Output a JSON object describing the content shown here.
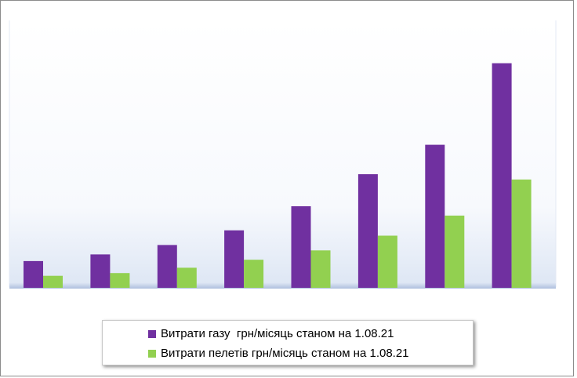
{
  "chart_data": {
    "type": "bar",
    "title": "",
    "xlabel": "",
    "ylabel": "",
    "categories": [
      "",
      "",
      "",
      "",
      "",
      "",
      "",
      ""
    ],
    "ylim": [
      0,
      100
    ],
    "grid": false,
    "legend_position": "bottom",
    "series": [
      {
        "name": "Витрати газу  грн/місяць станом на 1.08.21",
        "color": "#7030a0",
        "values": [
          10.0,
          12.5,
          16.0,
          21.5,
          30.5,
          42.5,
          53.5,
          84.0
        ]
      },
      {
        "name": "Витрати пелетів грн/місяць станом на 1.08.21",
        "color": "#92d050",
        "values": [
          4.5,
          5.5,
          7.5,
          10.5,
          14.0,
          19.5,
          27.0,
          40.5
        ]
      }
    ]
  }
}
